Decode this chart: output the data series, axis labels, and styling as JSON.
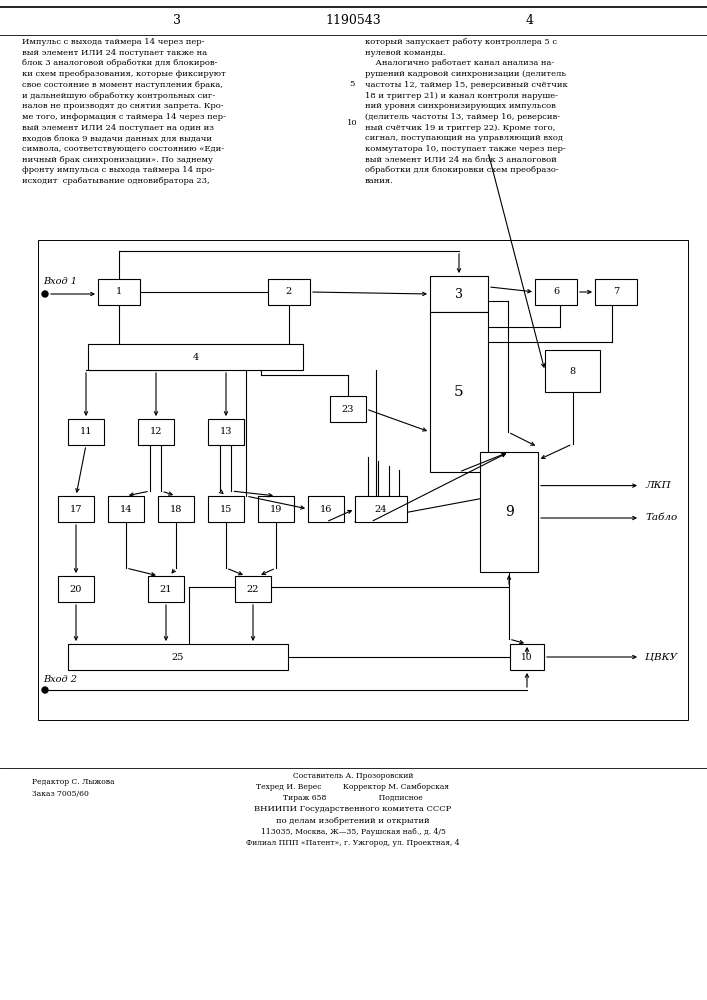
{
  "title": "1190543",
  "page_left": "3",
  "page_right": "4",
  "text_left": "Импульс с выхода таймера 14 через пер-\nвый элемент ИЛИ 24 поступает также на\nблок 3 аналоговой обработки для блокиров-\nки схем преобразования, которые фиксируют\nсвое состояние в момент наступления брака,\nи дальнейшую обработку контрольных сиг-\nналов не производят до снятия запрета. Кро-\nме того, информация с таймера 14 через пер-\nвый элемент ИЛИ 24 поступает на один из\nвходов блока 9 выдачи данных для выдачи\nсимвола, соответствующего состоянию «Еди-\nничный брак синхронизации». По заднему\nфронту импульса с выхода таймера 14 про-\nисходит  срабатывание одновибратора 23,",
  "text_right": "который запускает работу контроллера 5 с\nнулевой команды.\n    Аналогично работает канал анализа на-\nрушений кадровой синхронизации (делитель\nчастоты 12, таймер 15, реверсивный счётчик\n18 и триггер 21) и канал контроля наруше-\nний уровня синхронизирующих импульсов\n(делитель частоты 13, таймер 16, реверсив-\nный счётчик 19 и триггер 22). Кроме того,\nсигнал, поступающий на управляющий вход\nкоммутатора 10, поступает также через пер-\nвый элемент ИЛИ 24 на блок 3 аналоговой\nобработки для блокировки схем преобразо-\nвания.",
  "footer_left1": "Редактор С. Лыжова",
  "footer_left2": "Заказ 7005/60",
  "footer_center1": "Составитель А. Прозоровский",
  "footer_center2": "Техред И. Верес         Корректор М. Самборская",
  "footer_center3": "Тираж 658                      Подписное",
  "footer_center4": "ВНИИПИ Государственного комитета СССР",
  "footer_center5": "по делам изобретений и открытий",
  "footer_center6": "113035, Москва, Ж—35, Раушская наб., д. 4/5",
  "footer_center7": "Филиал ППП «Патент», г. Ужгород, ул. Проектная, 4",
  "bg_color": "#ffffff",
  "line_color": "#000000"
}
